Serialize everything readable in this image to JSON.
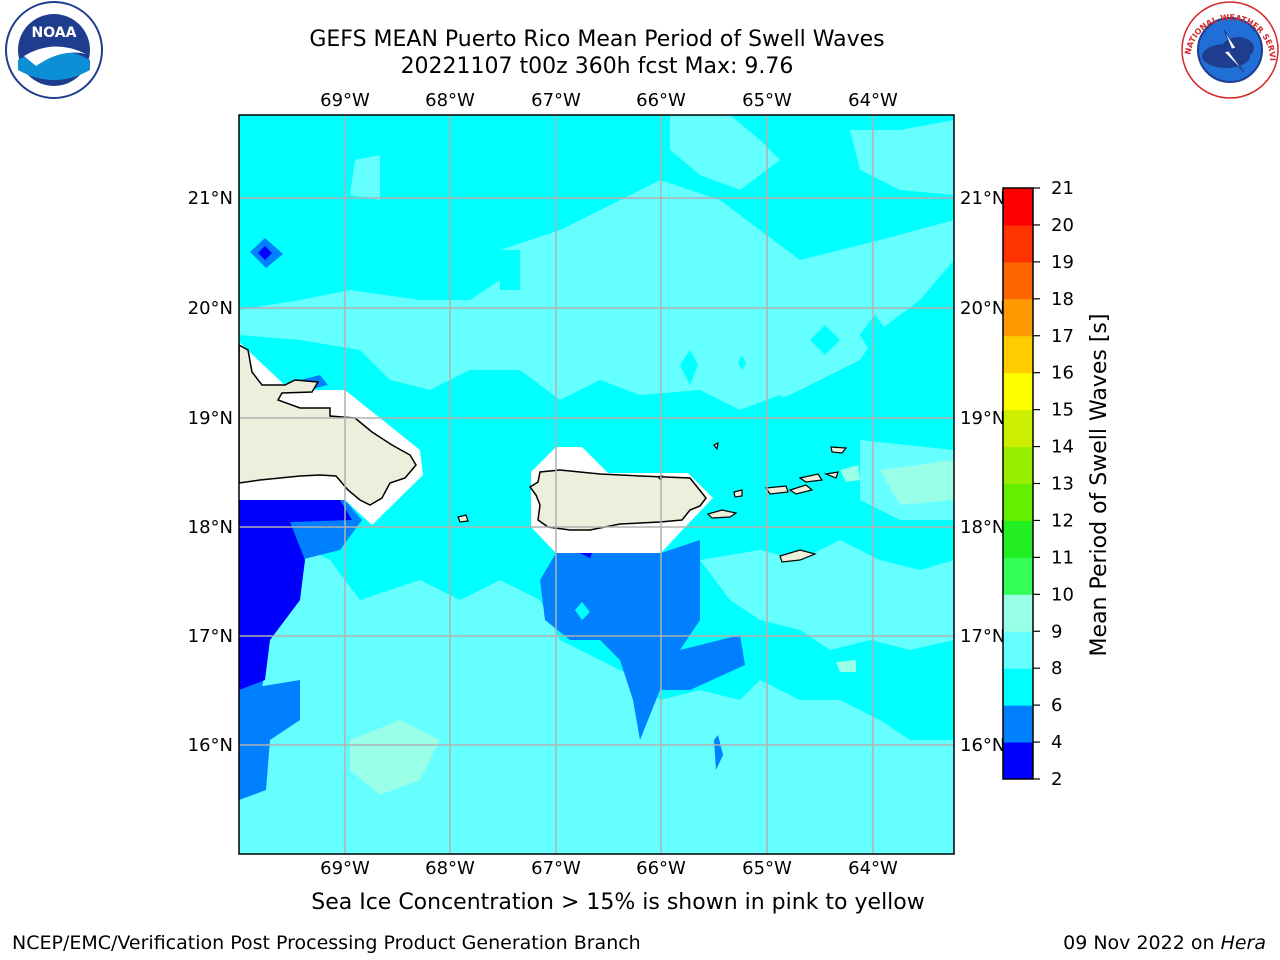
{
  "title_line1": "GEFS MEAN Puerto Rico Mean Period of Swell Waves",
  "title_line2": "20221107 t00z 360h fcst   Max: 9.76",
  "lon_labels": [
    "69°W",
    "68°W",
    "67°W",
    "66°W",
    "65°W",
    "64°W"
  ],
  "lat_labels": [
    "21°N",
    "20°N",
    "19°N",
    "18°N",
    "17°N",
    "16°N"
  ],
  "colorbar": {
    "label": "Mean Period of Swell Waves [s]",
    "ticks": [
      "2",
      "4",
      "6",
      "8",
      "9",
      "10",
      "11",
      "12",
      "13",
      "14",
      "15",
      "16",
      "17",
      "18",
      "19",
      "20",
      "21"
    ],
    "colors": [
      "#0000ff",
      "#0080ff",
      "#00ffff",
      "#66ffff",
      "#99ffe6",
      "#33ff55",
      "#22ee22",
      "#66ee00",
      "#99ee00",
      "#ccee00",
      "#ffff00",
      "#ffcc00",
      "#ff9900",
      "#ff6600",
      "#ff3300",
      "#ff0000"
    ]
  },
  "colors": {
    "land": "#eeeedd",
    "grid": "#b0b0b0",
    "period_2_4": "#0000ff",
    "period_4_6": "#0080ff",
    "period_6_8": "#00ffff",
    "period_8_9": "#66ffff",
    "period_9_10": "#99ffe6"
  },
  "logos": {
    "noaa_text": "NOAA",
    "nws_text": "NATIONAL WEATHER SERVICE"
  },
  "footer": {
    "sea_ice_note": "Sea Ice Concentration > 15% is shown in pink to yellow",
    "credit": "NCEP/EMC/Verification Post Processing Product Generation Branch",
    "date": "09 Nov 2022 on",
    "host": "Hera"
  }
}
